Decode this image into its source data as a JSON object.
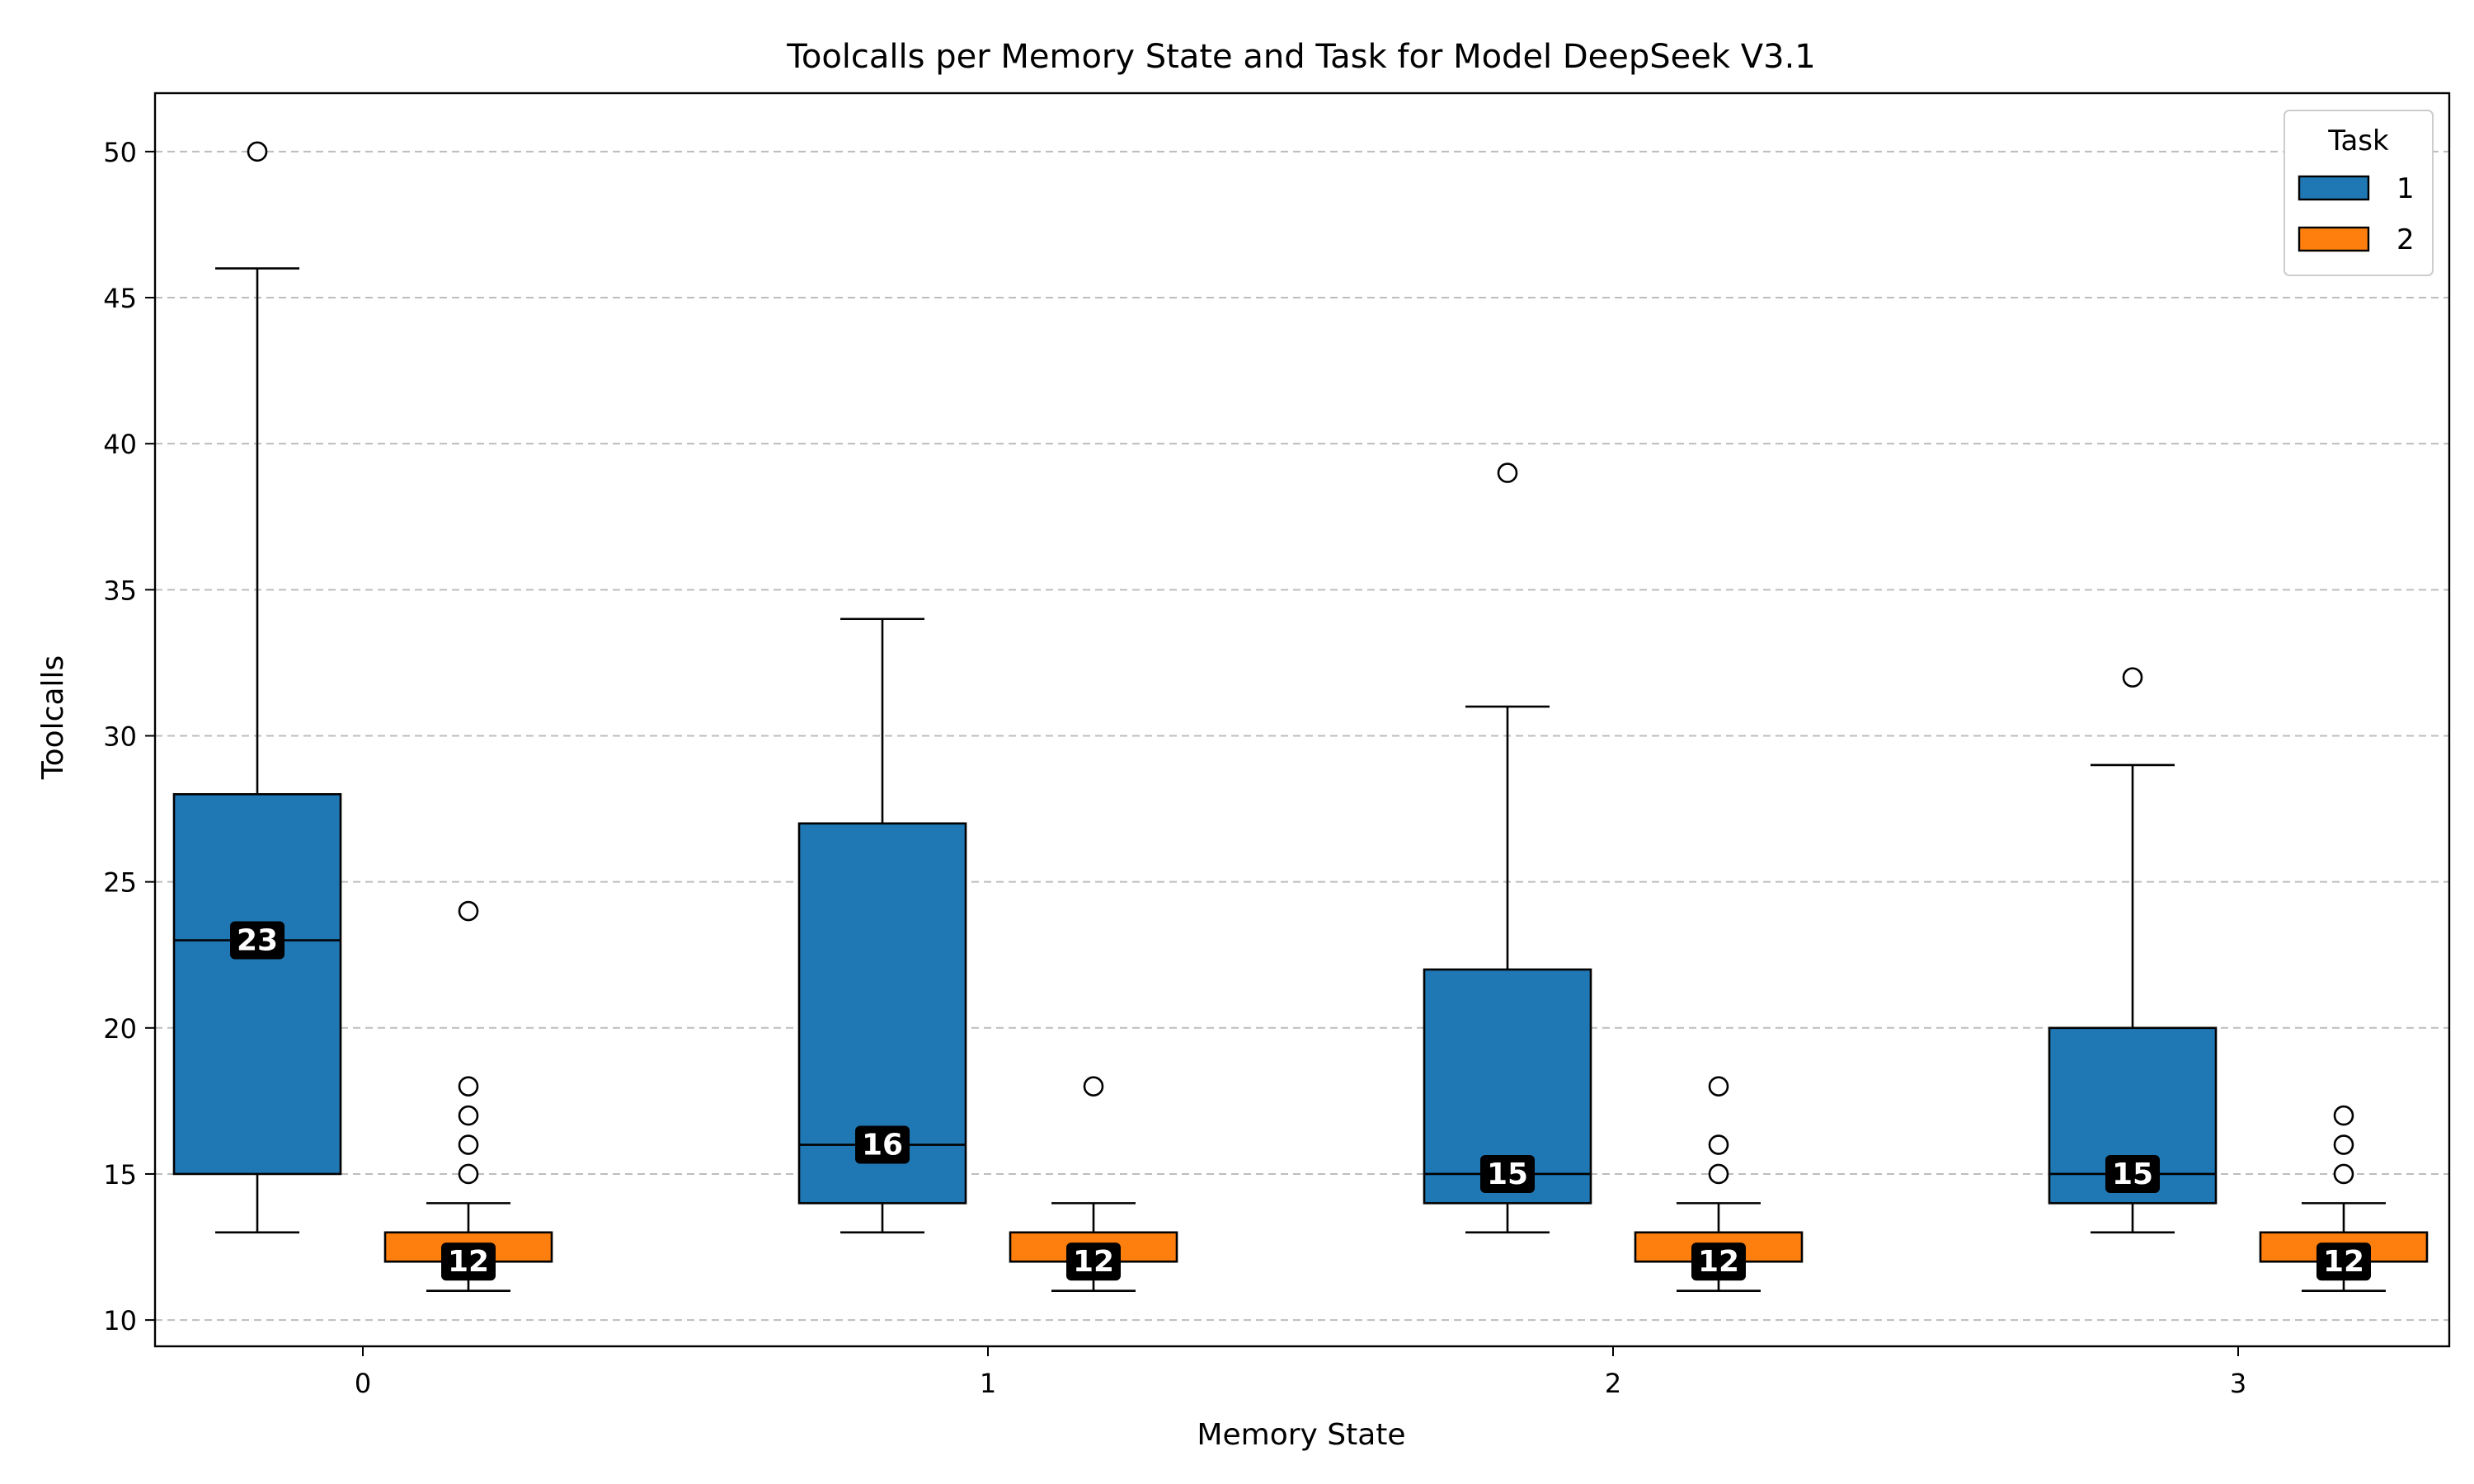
{
  "chart_data": {
    "type": "box",
    "title": "Toolcalls per Memory State and Task for Model DeepSeek V3.1",
    "xlabel": "Memory State",
    "ylabel": "Toolcalls",
    "categories": [
      "0",
      "1",
      "2",
      "3"
    ],
    "ylim": [
      9.1,
      52
    ],
    "yticks": [
      10,
      15,
      20,
      25,
      30,
      35,
      40,
      45,
      50
    ],
    "grid": "y-dashed",
    "legend": {
      "title": "Task",
      "position": "top-right"
    },
    "series": [
      {
        "name": "1",
        "color": "#1f77b4",
        "boxes": [
          {
            "category": "0",
            "whisker_low": 13,
            "q1": 15,
            "median": 23,
            "q3": 28,
            "whisker_high": 46,
            "fliers": [
              50
            ],
            "median_label": "23"
          },
          {
            "category": "1",
            "whisker_low": 13,
            "q1": 14,
            "median": 16,
            "q3": 27,
            "whisker_high": 34,
            "fliers": [],
            "median_label": "16"
          },
          {
            "category": "2",
            "whisker_low": 13,
            "q1": 14,
            "median": 15,
            "q3": 22,
            "whisker_high": 31,
            "fliers": [
              39
            ],
            "median_label": "15"
          },
          {
            "category": "3",
            "whisker_low": 13,
            "q1": 14,
            "median": 15,
            "q3": 20,
            "whisker_high": 29,
            "fliers": [
              32
            ],
            "median_label": "15"
          }
        ]
      },
      {
        "name": "2",
        "color": "#ff7f0e",
        "boxes": [
          {
            "category": "0",
            "whisker_low": 11,
            "q1": 12,
            "median": 12,
            "q3": 13,
            "whisker_high": 14,
            "fliers": [
              15,
              16,
              17,
              18,
              24
            ],
            "median_label": "12"
          },
          {
            "category": "1",
            "whisker_low": 11,
            "q1": 12,
            "median": 12,
            "q3": 13,
            "whisker_high": 14,
            "fliers": [
              18
            ],
            "median_label": "12"
          },
          {
            "category": "2",
            "whisker_low": 11,
            "q1": 12,
            "median": 12,
            "q3": 13,
            "whisker_high": 14,
            "fliers": [
              15,
              16,
              18
            ],
            "median_label": "12"
          },
          {
            "category": "3",
            "whisker_low": 11,
            "q1": 12,
            "median": 12,
            "q3": 13,
            "whisker_high": 14,
            "fliers": [
              15,
              16,
              17
            ],
            "median_label": "12"
          }
        ]
      }
    ]
  }
}
